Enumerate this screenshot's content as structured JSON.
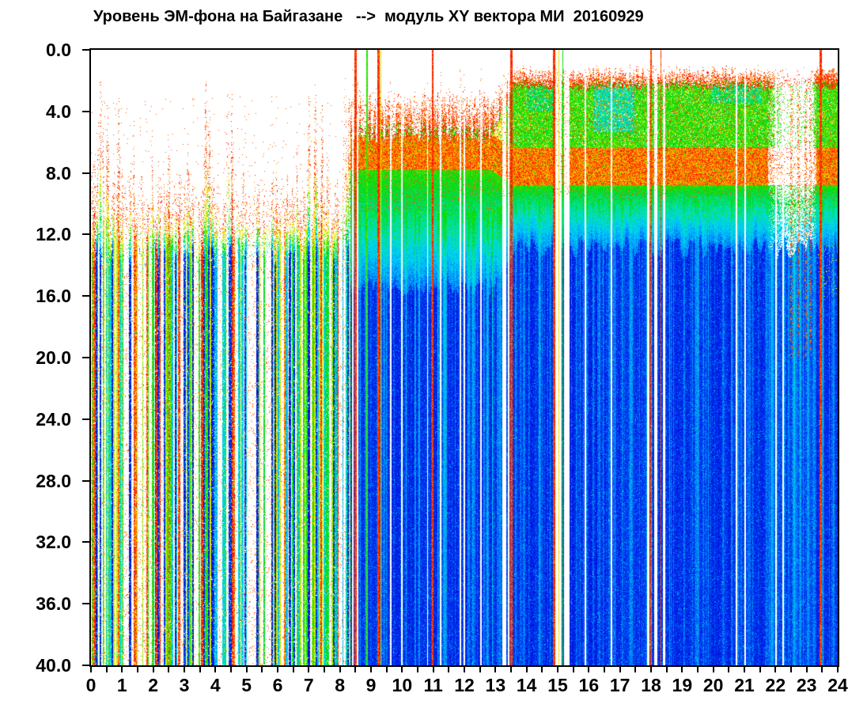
{
  "chart_data": {
    "type": "heatmap",
    "title": "Уровень ЭМ-фона на Байгазане   -->  модуль XY вектора МИ  20160929",
    "station": "Байгазан",
    "date_label": "20160929",
    "x_axis": {
      "unit": "hours",
      "min": 0,
      "max": 24,
      "major_tick_step": 1,
      "minor_tick_step": 0.5,
      "tick_labels": [
        "0",
        "1",
        "2",
        "3",
        "4",
        "5",
        "6",
        "7",
        "8",
        "9",
        "10",
        "11",
        "12",
        "13",
        "14",
        "15",
        "16",
        "17",
        "18",
        "19",
        "20",
        "21",
        "22",
        "23",
        "24"
      ]
    },
    "y_axis": {
      "unit": "Hz",
      "min": 0,
      "max": 40,
      "inverted": true,
      "tick_step": 4,
      "tick_labels": [
        "0.0",
        "4.0",
        "8.0",
        "12.0",
        "16.0",
        "20.0",
        "24.0",
        "28.0",
        "32.0",
        "36.0",
        "40.0"
      ]
    },
    "colormap": "jet",
    "background": "#ffffff",
    "no_data_color": "#ffffff",
    "axis_color": "#000000",
    "text_color": "#000000",
    "pattern_description": "Spectrogram 0-40 Hz over 24 h. 0-8.3 h: sparse intense vertical event streaks (red speckle tops, multicolored barcode below ~13 Hz). 8.3-24 h: continuous signal - red speckle cap near 1-2 Hz, green band 2-6.5 Hz, red band ~6.5-8.7 Hz, cyan-to-deep-blue below 9 Hz with cyan streaks; dropouts at ~15.2 h, ~18.1 h and weak interval 21.8-23.3 h; strong burst 23.3-23.9 h.",
    "render_model": {
      "seed": 7.31,
      "palette": [
        [
          0.0,
          "#0000b0"
        ],
        [
          0.1,
          "#0018e8"
        ],
        [
          0.22,
          "#00a0ff"
        ],
        [
          0.32,
          "#00ddee"
        ],
        [
          0.42,
          "#00e080"
        ],
        [
          0.52,
          "#00d800"
        ],
        [
          0.62,
          "#58e800"
        ],
        [
          0.7,
          "#c8f000"
        ],
        [
          0.77,
          "#ffe800"
        ],
        [
          0.84,
          "#ff9800"
        ],
        [
          0.9,
          "#ff2000"
        ],
        [
          1.0,
          "#e00000"
        ]
      ],
      "morning": {
        "end": 8.33,
        "bar_top": 13.0,
        "gap_fraction": 0.28,
        "default_onset": 8.6,
        "events": [
          {
            "t": 0.1,
            "top": 7.0,
            "w": 0.1
          },
          {
            "t": 0.3,
            "top": 1.9,
            "w": 0.14
          },
          {
            "t": 0.52,
            "top": 3.3,
            "w": 0.07
          },
          {
            "t": 0.88,
            "top": 2.7,
            "w": 0.06
          },
          {
            "t": 1.35,
            "top": 5.3,
            "w": 0.07
          },
          {
            "t": 1.62,
            "top": 7.6,
            "w": 0.05
          },
          {
            "t": 1.95,
            "top": 5.1,
            "w": 0.07
          },
          {
            "t": 2.16,
            "top": 7.2,
            "w": 0.05
          },
          {
            "t": 2.5,
            "top": 6.3,
            "w": 0.06
          },
          {
            "t": 2.78,
            "top": 7.6,
            "w": 0.05
          },
          {
            "t": 3.1,
            "top": 5.9,
            "w": 0.06
          },
          {
            "t": 3.68,
            "top": 1.6,
            "w": 0.06
          },
          {
            "t": 3.79,
            "top": 2.3,
            "w": 0.05
          },
          {
            "t": 4.38,
            "top": 1.5,
            "w": 0.06
          },
          {
            "t": 4.52,
            "top": 2.6,
            "w": 0.05
          },
          {
            "t": 4.9,
            "top": 6.9,
            "w": 0.06
          },
          {
            "t": 5.25,
            "top": 6.4,
            "w": 0.07
          },
          {
            "t": 5.6,
            "top": 7.8,
            "w": 0.06
          },
          {
            "t": 5.95,
            "top": 6.9,
            "w": 0.07
          },
          {
            "t": 6.3,
            "top": 7.3,
            "w": 0.06
          },
          {
            "t": 6.6,
            "top": 5.9,
            "w": 0.06
          },
          {
            "t": 7.0,
            "top": 2.7,
            "w": 0.08
          },
          {
            "t": 7.2,
            "top": 2.1,
            "w": 0.07
          },
          {
            "t": 7.42,
            "top": 3.3,
            "w": 0.07
          },
          {
            "t": 7.58,
            "top": 6.1,
            "w": 0.05
          },
          {
            "t": 7.9,
            "top": 7.9,
            "w": 0.05
          },
          {
            "t": 8.15,
            "top": 1.1,
            "w": 0.08
          },
          {
            "t": 8.28,
            "top": 2.3,
            "w": 0.05
          }
        ],
        "gaps": [
          [
            1.02,
            1.12
          ],
          [
            1.55,
            1.64
          ],
          [
            2.22,
            2.32
          ],
          [
            2.86,
            2.95
          ],
          [
            3.28,
            3.44
          ],
          [
            4.06,
            4.2
          ],
          [
            5.0,
            5.11
          ],
          [
            5.43,
            5.52
          ],
          [
            6.09,
            6.19
          ],
          [
            7.63,
            7.72
          ],
          [
            8.0,
            8.06
          ]
        ]
      },
      "day": {
        "start": 8.33,
        "early_end": 13.3,
        "red_band_late": [
          6.35,
          8.75
        ],
        "red_band_early": [
          5.5,
          7.8
        ],
        "green_top_late": 2.15,
        "green_top_early": 5.3,
        "top_cap_late": 0.9,
        "top_cap_early": 2.3,
        "green_bottom_late": 9.65,
        "green_bottom_early": 10.4,
        "cyan_bottom_late": 12.1,
        "cyan_bottom_early": 14.8,
        "cyan_patches": [
          {
            "t0": 16.15,
            "t1": 17.45,
            "f0": 1.7,
            "f1": 5.3,
            "dv": -0.17
          },
          {
            "t0": 19.9,
            "t1": 21.55,
            "f0": 1.0,
            "f1": 3.4,
            "dv": -0.12
          },
          {
            "t0": 14.0,
            "t1": 15.0,
            "f0": 1.5,
            "f1": 4.0,
            "dv": -0.1
          }
        ],
        "weak": {
          "t0": 21.75,
          "t1": 23.3,
          "wisps": [
            22.5,
            22.72,
            22.95,
            23.12
          ]
        },
        "end_spike": {
          "t0": 23.32,
          "t1": 23.95,
          "top": 1.0
        },
        "gaps": [
          [
            8.38,
            8.44
          ],
          [
            8.53,
            8.58
          ],
          [
            9.6,
            9.66
          ],
          [
            9.95,
            10.01
          ],
          [
            10.78,
            10.83
          ],
          [
            11.2,
            11.26
          ],
          [
            11.84,
            11.89
          ],
          [
            11.96,
            12.01
          ],
          [
            12.5,
            12.55
          ],
          [
            13.2,
            13.33
          ],
          [
            13.38,
            13.43
          ],
          [
            14.9,
            15.0
          ],
          [
            15.05,
            15.12
          ],
          [
            15.2,
            15.38
          ],
          [
            15.86,
            15.9
          ],
          [
            16.7,
            16.74
          ],
          [
            17.85,
            17.94
          ],
          [
            18.1,
            18.19
          ],
          [
            18.38,
            18.44
          ],
          [
            20.7,
            20.75
          ],
          [
            21.0,
            21.04
          ],
          [
            21.98,
            22.03
          ],
          [
            22.2,
            22.25
          ]
        ],
        "lines": [
          {
            "t": 8.49,
            "v": 0.9,
            "w": 2
          },
          {
            "t": 8.86,
            "v": 0.58,
            "w": 1
          },
          {
            "t": 9.22,
            "v": 0.9,
            "w": 2
          },
          {
            "t": 9.31,
            "v": 0.75,
            "w": 1
          },
          {
            "t": 10.97,
            "v": 0.9,
            "w": 1
          },
          {
            "t": 13.49,
            "v": 0.9,
            "w": 2
          },
          {
            "t": 14.87,
            "v": 0.9,
            "w": 2
          },
          {
            "t": 15.03,
            "v": 0.76,
            "w": 1
          },
          {
            "t": 15.15,
            "v": 0.54,
            "w": 1
          },
          {
            "t": 17.99,
            "v": 0.88,
            "w": 1
          },
          {
            "t": 18.31,
            "v": 0.88,
            "w": 1
          },
          {
            "t": 23.45,
            "v": 0.9,
            "w": 2
          }
        ]
      }
    }
  }
}
